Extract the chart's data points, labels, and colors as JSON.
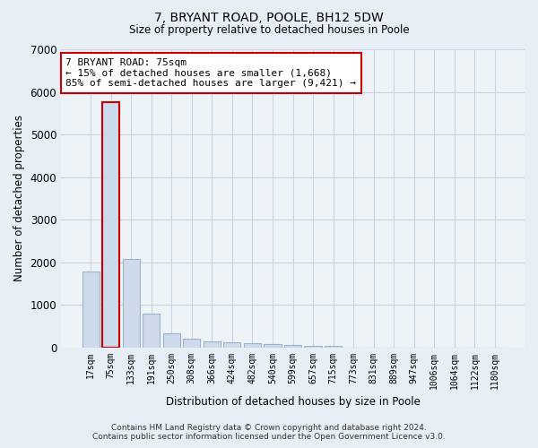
{
  "title": "7, BRYANT ROAD, POOLE, BH12 5DW",
  "subtitle": "Size of property relative to detached houses in Poole",
  "xlabel": "Distribution of detached houses by size in Poole",
  "ylabel": "Number of detached properties",
  "footer_line1": "Contains HM Land Registry data © Crown copyright and database right 2024.",
  "footer_line2": "Contains public sector information licensed under the Open Government Licence v3.0.",
  "categories": [
    "17sqm",
    "75sqm",
    "133sqm",
    "191sqm",
    "250sqm",
    "308sqm",
    "366sqm",
    "424sqm",
    "482sqm",
    "540sqm",
    "599sqm",
    "657sqm",
    "715sqm",
    "773sqm",
    "831sqm",
    "889sqm",
    "947sqm",
    "1006sqm",
    "1064sqm",
    "1122sqm",
    "1180sqm"
  ],
  "values": [
    1780,
    5750,
    2070,
    800,
    340,
    200,
    140,
    115,
    90,
    70,
    55,
    45,
    40,
    0,
    0,
    0,
    0,
    0,
    0,
    0,
    0
  ],
  "bar_color": "#ccdaeb",
  "bar_edge_color": "#9ab4cc",
  "highlight_index": 1,
  "highlight_bar_edge_color": "#cc0000",
  "annotation_text": "7 BRYANT ROAD: 75sqm\n← 15% of detached houses are smaller (1,668)\n85% of semi-detached houses are larger (9,421) →",
  "annotation_box_color": "white",
  "annotation_box_edge_color": "#cc0000",
  "ylim": [
    0,
    7000
  ],
  "yticks": [
    0,
    1000,
    2000,
    3000,
    4000,
    5000,
    6000,
    7000
  ],
  "grid_color": "#c8d4e4",
  "background_color": "#e8eef5",
  "plot_background_color": "#eef3f8"
}
